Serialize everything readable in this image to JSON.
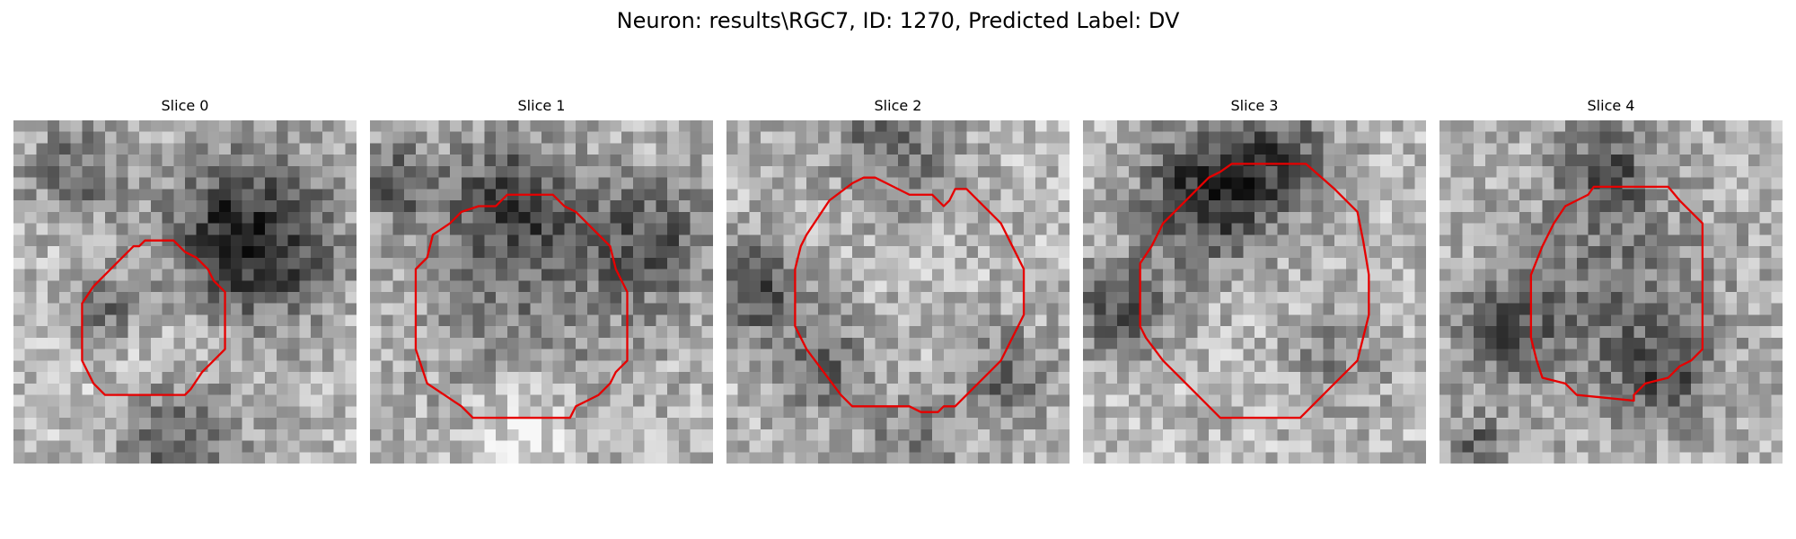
{
  "figure": {
    "title": "Neuron: results\\RGC7, ID: 1270, Predicted Label: DV"
  },
  "panels": [
    {
      "title": "Slice 0",
      "seed": 11,
      "contour_color": "#e60000"
    },
    {
      "title": "Slice 1",
      "seed": 23,
      "contour_color": "#e60000"
    },
    {
      "title": "Slice 2",
      "seed": 37,
      "contour_color": "#e60000"
    },
    {
      "title": "Slice 3",
      "seed": 41,
      "contour_color": "#e60000"
    },
    {
      "title": "Slice 4",
      "seed": 53,
      "contour_color": "#e60000"
    }
  ]
}
